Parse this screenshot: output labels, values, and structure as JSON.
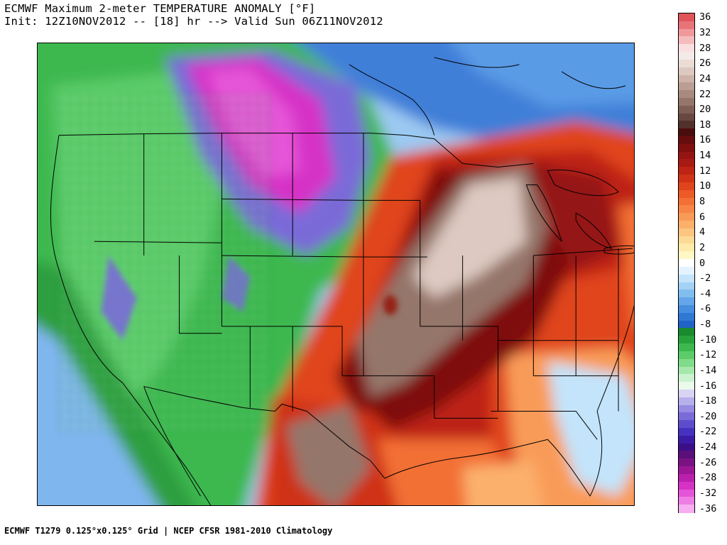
{
  "header": {
    "title_line1": "ECMWF Maximum 2-meter TEMPERATURE ANOMALY [°F]",
    "title_line2": "Init: 12Z10NOV2012 -- [18] hr --> Valid Sun 06Z11NOV2012"
  },
  "footer": {
    "text": "ECMWF T1279 0.125°x0.125° Grid | NCEP CFSR 1981-2010 Climatology"
  },
  "colorbar": {
    "levels": [
      {
        "label": "36",
        "color": "#e0555a"
      },
      {
        "label": "",
        "color": "#e87479"
      },
      {
        "label": "32",
        "color": "#ef999b"
      },
      {
        "label": "",
        "color": "#f5bcbe"
      },
      {
        "label": "28",
        "color": "#fadfe0"
      },
      {
        "label": "",
        "color": "#f3ebe8"
      },
      {
        "label": "26",
        "color": "#ebdcd6"
      },
      {
        "label": "",
        "color": "#ddc9c1"
      },
      {
        "label": "24",
        "color": "#cdb3a9"
      },
      {
        "label": "",
        "color": "#bb9e93"
      },
      {
        "label": "22",
        "color": "#a88a7f"
      },
      {
        "label": "",
        "color": "#95766b"
      },
      {
        "label": "20",
        "color": "#7f5f55"
      },
      {
        "label": "",
        "color": "#684840"
      },
      {
        "label": "18",
        "color": "#52302b"
      },
      {
        "label": "",
        "color": "#4a0d0d"
      },
      {
        "label": "16",
        "color": "#670d0d"
      },
      {
        "label": "",
        "color": "#7f0f0f"
      },
      {
        "label": "14",
        "color": "#951414"
      },
      {
        "label": "",
        "color": "#a81a14"
      },
      {
        "label": "12",
        "color": "#bd2413"
      },
      {
        "label": "",
        "color": "#cf3216"
      },
      {
        "label": "10",
        "color": "#e0441c"
      },
      {
        "label": "",
        "color": "#ec5a27"
      },
      {
        "label": "8",
        "color": "#f37035"
      },
      {
        "label": "",
        "color": "#f78545"
      },
      {
        "label": "6",
        "color": "#f99b58"
      },
      {
        "label": "",
        "color": "#fbb06c"
      },
      {
        "label": "4",
        "color": "#fcc681"
      },
      {
        "label": "",
        "color": "#fdd996"
      },
      {
        "label": "2",
        "color": "#feeaa9"
      },
      {
        "label": "",
        "color": "#fff7c4"
      },
      {
        "label": "0",
        "color": "#ffffff"
      },
      {
        "label": "",
        "color": "#e4f3ff"
      },
      {
        "label": "-2",
        "color": "#c3e4fb"
      },
      {
        "label": "",
        "color": "#a3d2f6"
      },
      {
        "label": "-4",
        "color": "#82bdf0"
      },
      {
        "label": "",
        "color": "#63a6e9"
      },
      {
        "label": "-6",
        "color": "#468fe0"
      },
      {
        "label": "",
        "color": "#2f78d4"
      },
      {
        "label": "-8",
        "color": "#1f64c6"
      },
      {
        "label": "",
        "color": "#1a8a2e"
      },
      {
        "label": "-10",
        "color": "#27a23b"
      },
      {
        "label": "",
        "color": "#3cb84f"
      },
      {
        "label": "-12",
        "color": "#5ccc6a"
      },
      {
        "label": "",
        "color": "#80db8a"
      },
      {
        "label": "-14",
        "color": "#a6e8ab"
      },
      {
        "label": "",
        "color": "#ccf2cf"
      },
      {
        "label": "-16",
        "color": "#eafaeb"
      },
      {
        "label": "",
        "color": "#d8d4f4"
      },
      {
        "label": "-18",
        "color": "#b8b0ec"
      },
      {
        "label": "",
        "color": "#978ce2"
      },
      {
        "label": "-20",
        "color": "#7a6bd8"
      },
      {
        "label": "",
        "color": "#5d4dcd"
      },
      {
        "label": "-22",
        "color": "#4632bf"
      },
      {
        "label": "",
        "color": "#3a1ca6"
      },
      {
        "label": "-24",
        "color": "#3b0f88"
      },
      {
        "label": "",
        "color": "#5a0f7a"
      },
      {
        "label": "-26",
        "color": "#7a1282"
      },
      {
        "label": "",
        "color": "#9b1795"
      },
      {
        "label": "-28",
        "color": "#bb20ad"
      },
      {
        "label": "",
        "color": "#d632c6"
      },
      {
        "label": "-32",
        "color": "#e554d8"
      },
      {
        "label": "",
        "color": "#ee7ee6"
      },
      {
        "label": "-36",
        "color": "#f6aef1"
      }
    ]
  }
}
